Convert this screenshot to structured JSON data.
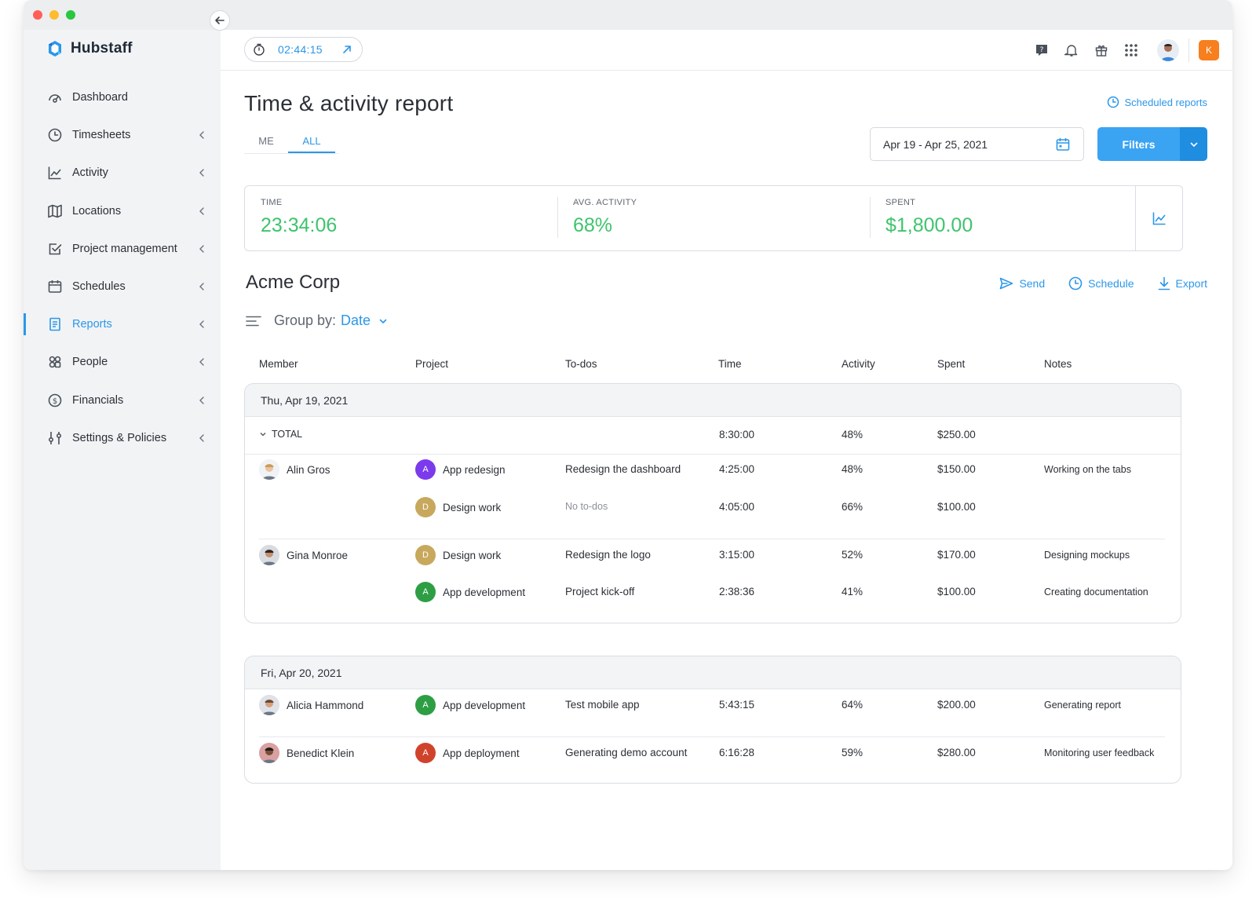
{
  "app": {
    "name": "Hubstaff"
  },
  "colors": {
    "accent": "#2b97e8",
    "positive": "#3ec46d",
    "org_badge": "#f77f1e"
  },
  "timer": {
    "value": "02:44:15"
  },
  "topbar": {
    "org_initial": "K",
    "icons": [
      "help-icon",
      "bell-icon",
      "gift-icon",
      "apps-grid-icon"
    ]
  },
  "sidebar": {
    "items": [
      {
        "label": "Dashboard",
        "icon": "dashboard-icon"
      },
      {
        "label": "Timesheets",
        "icon": "clock-icon"
      },
      {
        "label": "Activity",
        "icon": "activity-chart-icon"
      },
      {
        "label": "Locations",
        "icon": "map-icon"
      },
      {
        "label": "Project management",
        "icon": "checkbox-icon"
      },
      {
        "label": "Schedules",
        "icon": "calendar-icon"
      },
      {
        "label": "Reports",
        "icon": "report-icon",
        "active": true
      },
      {
        "label": "People",
        "icon": "people-icon"
      },
      {
        "label": "Financials",
        "icon": "dollar-icon"
      },
      {
        "label": "Settings & Policies",
        "icon": "sliders-icon"
      }
    ]
  },
  "page": {
    "title": "Time & activity report",
    "scheduled_reports": "Scheduled reports",
    "tabs": [
      "ME",
      "ALL"
    ],
    "date_range": "Apr 19 - Apr 25, 2021",
    "filters_label": "Filters"
  },
  "summary": {
    "time_label": "TIME",
    "time_value": "23:34:06",
    "activity_label": "AVG. ACTIVITY",
    "activity_value": "68%",
    "spent_label": "SPENT",
    "spent_value": "$1,800.00"
  },
  "org": {
    "name": "Acme Corp",
    "actions": {
      "send": "Send",
      "schedule": "Schedule",
      "export": "Export"
    }
  },
  "groupby": {
    "label": "Group by:",
    "value": "Date"
  },
  "columns": [
    "Member",
    "Project",
    "To-dos",
    "Time",
    "Activity",
    "Spent",
    "Notes"
  ],
  "groups": [
    {
      "date": "Thu, Apr 19, 2021",
      "total": {
        "label": "TOTAL",
        "time": "8:30:00",
        "activity": "48%",
        "spent": "$250.00"
      },
      "rows": [
        {
          "member": "Alin Gros",
          "project": "App redesign",
          "badge": "A",
          "badge_color": "#7c3aed",
          "todo": "Redesign the dashboard",
          "time": "4:25:00",
          "activity": "48%",
          "spent": "$150.00",
          "notes": "Working on the tabs"
        },
        {
          "member": "",
          "project": "Design work",
          "badge": "D",
          "badge_color": "#c8a85c",
          "todo": "No to-dos",
          "time": "4:05:00",
          "activity": "66%",
          "spent": "$100.00",
          "notes": ""
        },
        {
          "member": "Gina Monroe",
          "project": "Design work",
          "badge": "D",
          "badge_color": "#c8a85c",
          "todo": "Redesign the logo",
          "time": "3:15:00",
          "activity": "52%",
          "spent": "$170.00",
          "notes": "Designing mockups"
        },
        {
          "member": "",
          "project": "App development",
          "badge": "A",
          "badge_color": "#2e9e44",
          "todo": "Project kick-off",
          "time": "2:38:36",
          "activity": "41%",
          "spent": "$100.00",
          "notes": "Creating documentation"
        }
      ]
    },
    {
      "date": "Fri, Apr 20, 2021",
      "rows": [
        {
          "member": "Alicia Hammond",
          "project": "App development",
          "badge": "A",
          "badge_color": "#2e9e44",
          "todo": "Test mobile app",
          "time": "5:43:15",
          "activity": "64%",
          "spent": "$200.00",
          "notes": "Generating report"
        },
        {
          "member": "Benedict Klein",
          "project": "App deployment",
          "badge": "A",
          "badge_color": "#d0432b",
          "todo": "Generating demo account",
          "time": "6:16:28",
          "activity": "59%",
          "spent": "$280.00",
          "notes": "Monitoring user feedback"
        }
      ]
    }
  ]
}
